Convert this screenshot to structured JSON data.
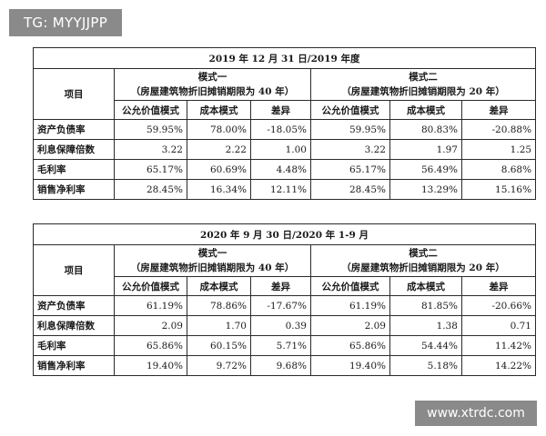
{
  "watermark_top": "TG: MYYJJPP",
  "watermark_bottom": "www.xtrdc.com",
  "tables": [
    {
      "title": "2019 年 12 月 31 日/2019 年度",
      "item_label": "项目",
      "mode1": {
        "name": "模式一",
        "desc": "（房屋建筑物折旧摊销期限为 40 年）"
      },
      "mode2": {
        "name": "模式二",
        "desc": "（房屋建筑物折旧摊销期限为 20 年）"
      },
      "subheaders": [
        "公允价值模式",
        "成本模式",
        "差异",
        "公允价值模式",
        "成本模式",
        "差异"
      ],
      "rows": [
        {
          "label": "资产负债率",
          "values": [
            "59.95%",
            "78.00%",
            "-18.05%",
            "59.95%",
            "80.83%",
            "-20.88%"
          ]
        },
        {
          "label": "利息保障倍数",
          "values": [
            "3.22",
            "2.22",
            "1.00",
            "3.22",
            "1.97",
            "1.25"
          ]
        },
        {
          "label": "毛利率",
          "values": [
            "65.17%",
            "60.69%",
            "4.48%",
            "65.17%",
            "56.49%",
            "8.68%"
          ]
        },
        {
          "label": "销售净利率",
          "values": [
            "28.45%",
            "16.34%",
            "12.11%",
            "28.45%",
            "13.29%",
            "15.16%"
          ]
        }
      ]
    },
    {
      "title": "2020 年 9 月 30 日/2020 年 1-9 月",
      "item_label": "项目",
      "mode1": {
        "name": "模式一",
        "desc": "（房屋建筑物折旧摊销期限为 40 年）"
      },
      "mode2": {
        "name": "模式二",
        "desc": "（房屋建筑物折旧摊销期限为 20 年）"
      },
      "subheaders": [
        "公允价值模式",
        "成本模式",
        "差异",
        "公允价值模式",
        "成本模式",
        "差异"
      ],
      "rows": [
        {
          "label": "资产负债率",
          "values": [
            "61.19%",
            "78.86%",
            "-17.67%",
            "61.19%",
            "81.85%",
            "-20.66%"
          ]
        },
        {
          "label": "利息保障倍数",
          "values": [
            "2.09",
            "1.70",
            "0.39",
            "2.09",
            "1.38",
            "0.71"
          ]
        },
        {
          "label": "毛利率",
          "values": [
            "65.86%",
            "60.15%",
            "5.71%",
            "65.86%",
            "54.44%",
            "11.42%"
          ]
        },
        {
          "label": "销售净利率",
          "values": [
            "19.40%",
            "9.72%",
            "9.68%",
            "19.40%",
            "5.18%",
            "14.22%"
          ]
        }
      ]
    }
  ]
}
